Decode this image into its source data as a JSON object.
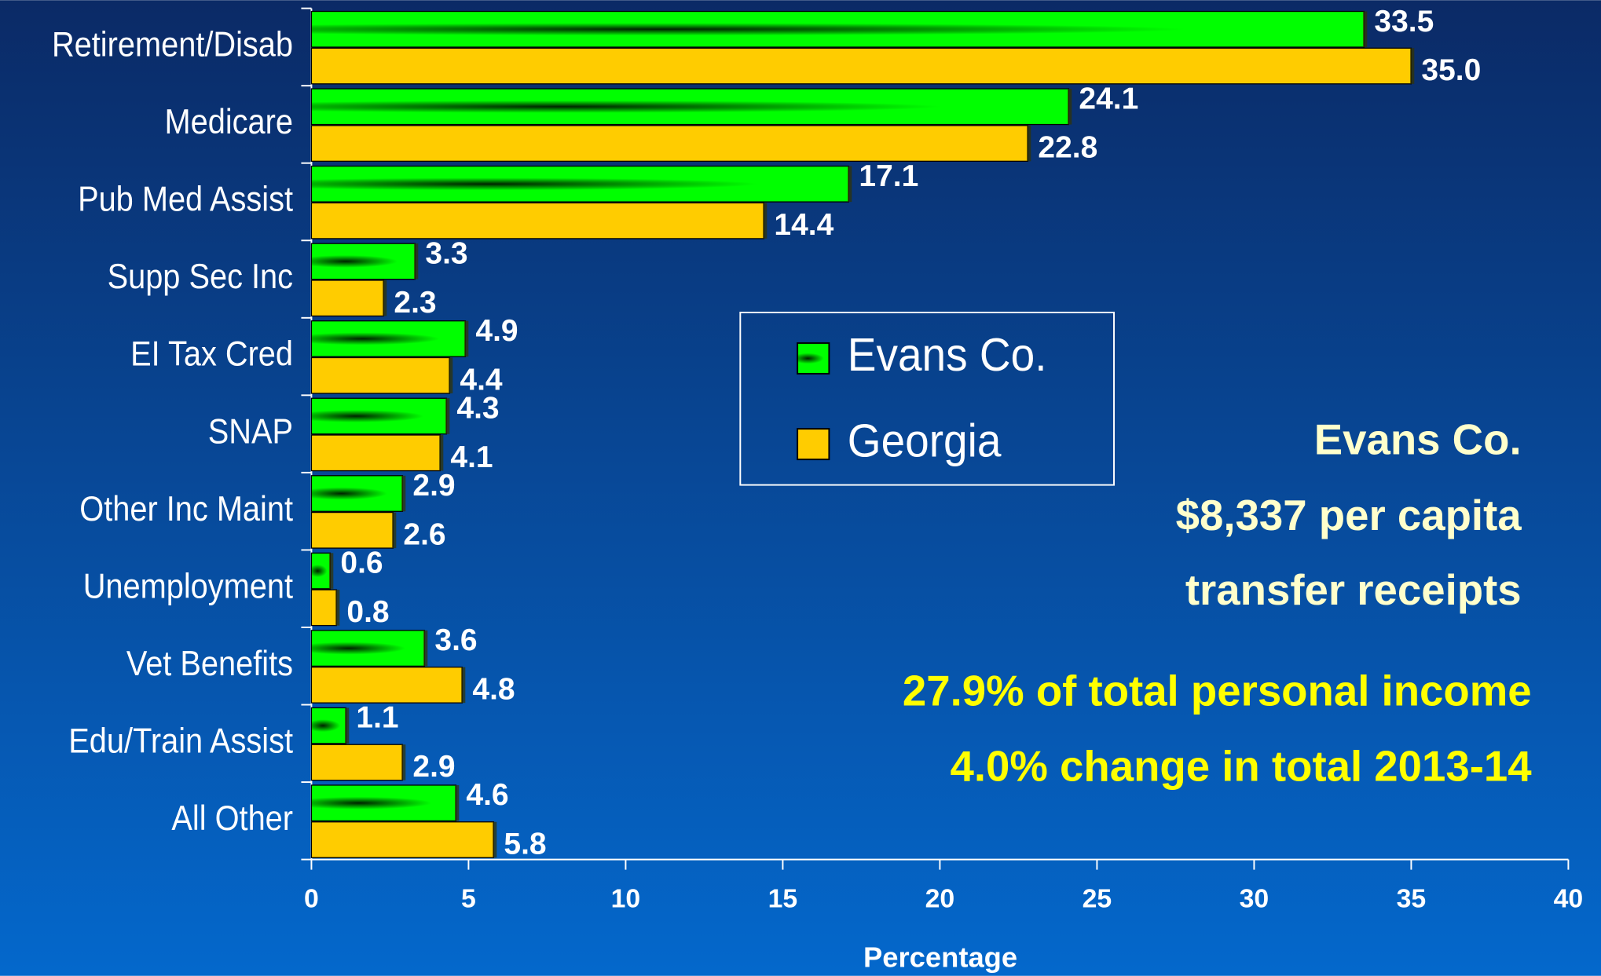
{
  "chart_data": {
    "type": "bar",
    "orientation": "horizontal",
    "categories": [
      "Retirement/Disab",
      "Medicare",
      "Pub Med Assist",
      "Supp Sec Inc",
      "EI Tax Cred",
      "SNAP",
      "Other Inc Maint",
      "Unemployment",
      "Vet Benefits",
      "Edu/Train Assist",
      "All Other"
    ],
    "series": [
      {
        "name": "Evans Co.",
        "color": "#00ee00",
        "values": [
          33.5,
          24.1,
          17.1,
          3.3,
          4.9,
          4.3,
          2.9,
          0.6,
          3.6,
          1.1,
          4.6
        ],
        "value_labels": [
          "33.5",
          "24.1",
          "17.1",
          "3.3",
          "4.9",
          "4.3",
          "2.9",
          "0.6",
          "3.6",
          "1.1",
          "4.6"
        ]
      },
      {
        "name": "Georgia",
        "color": "#ffcc00",
        "values": [
          35.0,
          22.8,
          14.4,
          2.3,
          4.4,
          4.1,
          2.6,
          0.8,
          4.8,
          2.9,
          5.8
        ],
        "value_labels": [
          "35.0",
          "22.8",
          "14.4",
          "2.3",
          "4.4",
          "4.1",
          "2.6",
          "0.8",
          "4.8",
          "2.9",
          "5.8"
        ]
      }
    ],
    "xlabel": "Percentage",
    "xlim": [
      0,
      40
    ],
    "xticks": [
      0,
      5,
      10,
      15,
      20,
      25,
      30,
      35,
      40
    ],
    "legend": "center",
    "annotations": [
      "Evans Co.",
      "$8,337 per capita",
      "transfer receipts",
      "27.9% of total personal income",
      "4.0% change in total 2013-14"
    ]
  }
}
